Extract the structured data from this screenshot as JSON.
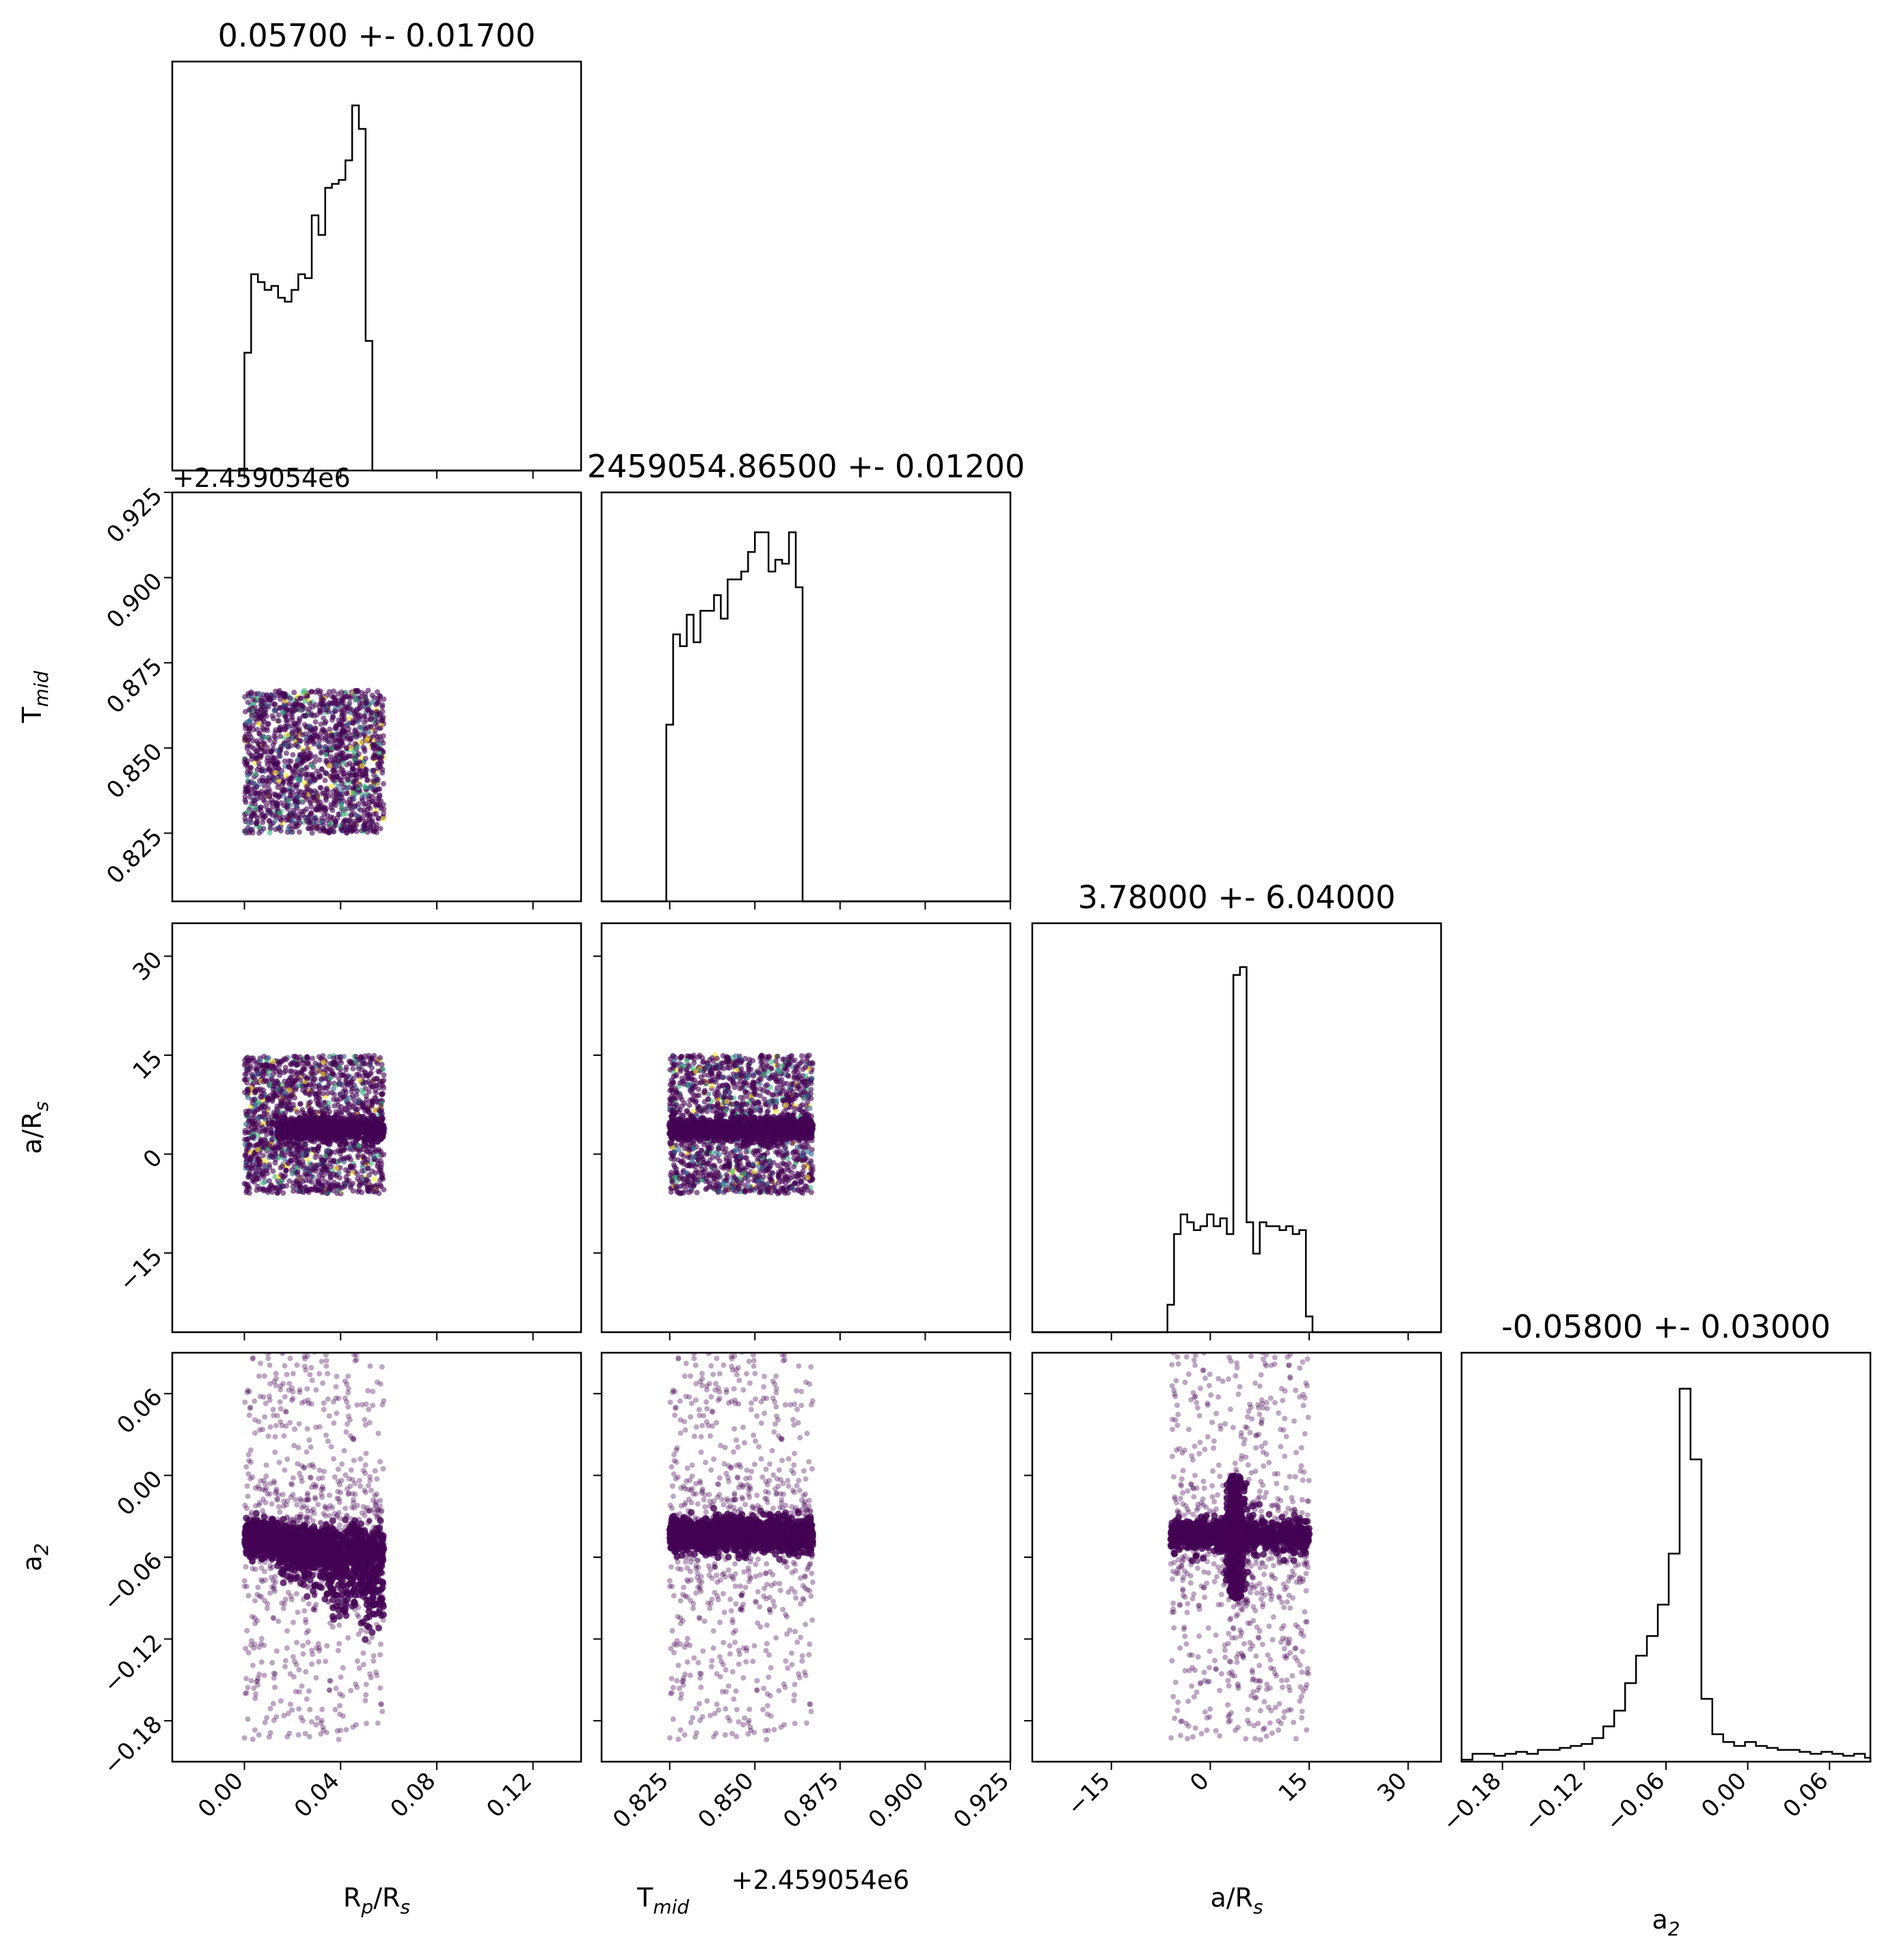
{
  "chart_data": [
    {
      "type": "histogram",
      "panel": "diag-0",
      "title": "0.05700 +- 0.01700",
      "variable": "R_p/R_s",
      "xlim": [
        -0.03,
        0.14
      ],
      "bins_x": [
        0.0,
        0.0028,
        0.0056,
        0.0084,
        0.0112,
        0.014,
        0.0168,
        0.0196,
        0.0224,
        0.0252,
        0.028,
        0.0308,
        0.0336,
        0.0364,
        0.0392,
        0.042,
        0.0448,
        0.0476,
        0.0504,
        0.0532,
        0.056,
        0.0588
      ],
      "counts": [
        0.3,
        0.5,
        0.48,
        0.46,
        0.47,
        0.44,
        0.43,
        0.46,
        0.5,
        0.49,
        0.65,
        0.6,
        0.72,
        0.73,
        0.74,
        0.79,
        0.93,
        0.87,
        0.33,
        0.0,
        0.0
      ]
    },
    {
      "type": "histogram",
      "panel": "diag-1",
      "title": "2459054.86500 +- 0.01200",
      "variable": "T_mid",
      "xlim": [
        0.805,
        0.925
      ],
      "offset_label": "+2.459054e6",
      "bins_x": [
        0.824,
        0.826,
        0.828,
        0.83,
        0.832,
        0.834,
        0.836,
        0.838,
        0.84,
        0.842,
        0.844,
        0.846,
        0.848,
        0.85,
        0.852,
        0.854,
        0.856,
        0.858,
        0.86,
        0.862,
        0.864,
        0.866
      ],
      "counts": [
        0.45,
        0.68,
        0.65,
        0.73,
        0.66,
        0.74,
        0.74,
        0.78,
        0.72,
        0.82,
        0.82,
        0.84,
        0.89,
        0.94,
        0.94,
        0.84,
        0.87,
        0.86,
        0.94,
        0.8,
        0.0
      ]
    },
    {
      "type": "histogram",
      "panel": "diag-2",
      "title": "3.78000 +- 6.04000",
      "variable": "a/R_s",
      "xlim": [
        -27,
        35
      ],
      "bins_x": [
        -6.5,
        -5.5,
        -4.5,
        -3.5,
        -2.5,
        -1.5,
        -0.5,
        0.5,
        1.5,
        2.5,
        3.5,
        4.5,
        5.5,
        6.5,
        7.5,
        8.5,
        9.5,
        10.5,
        11.5,
        12.5,
        13.5,
        14.5,
        15.5
      ],
      "counts": [
        0.07,
        0.25,
        0.3,
        0.28,
        0.26,
        0.27,
        0.3,
        0.27,
        0.29,
        0.25,
        0.91,
        0.93,
        0.28,
        0.2,
        0.28,
        0.27,
        0.27,
        0.26,
        0.27,
        0.25,
        0.26,
        0.04
      ]
    },
    {
      "type": "histogram",
      "panel": "diag-3",
      "title": "-0.05800 +- 0.03000",
      "variable": "a_2",
      "xlim": [
        -0.21,
        0.09
      ],
      "bins_x": [
        -0.21,
        -0.202,
        -0.194,
        -0.186,
        -0.178,
        -0.17,
        -0.162,
        -0.154,
        -0.146,
        -0.138,
        -0.13,
        -0.122,
        -0.114,
        -0.106,
        -0.098,
        -0.09,
        -0.082,
        -0.074,
        -0.066,
        -0.058,
        -0.05,
        -0.042,
        -0.034,
        -0.026,
        -0.018,
        -0.01,
        -0.002,
        0.006,
        0.014,
        0.022,
        0.03,
        0.038,
        0.046,
        0.054,
        0.062,
        0.07,
        0.078,
        0.086,
        0.09
      ],
      "counts": [
        0.005,
        0.02,
        0.02,
        0.015,
        0.02,
        0.025,
        0.02,
        0.03,
        0.03,
        0.035,
        0.04,
        0.045,
        0.06,
        0.09,
        0.13,
        0.2,
        0.27,
        0.32,
        0.4,
        0.53,
        0.95,
        0.77,
        0.16,
        0.07,
        0.05,
        0.04,
        0.05,
        0.04,
        0.035,
        0.03,
        0.03,
        0.025,
        0.02,
        0.025,
        0.02,
        0.015,
        0.02,
        0.01
      ]
    },
    {
      "type": "scatter",
      "panel": "1-0",
      "x_variable": "R_p/R_s",
      "y_variable": "T_mid",
      "xlim": [
        -0.03,
        0.14
      ],
      "ylim": [
        0.805,
        0.925
      ],
      "description_regions": [
        {
          "x": [
            0.0,
            0.058
          ],
          "y": [
            0.825,
            0.867
          ],
          "kind": "uniform",
          "n": 1600
        }
      ]
    },
    {
      "type": "scatter",
      "panel": "2-0",
      "x_variable": "R_p/R_s",
      "y_variable": "a/R_s",
      "xlim": [
        -0.03,
        0.14
      ],
      "ylim": [
        -27,
        35
      ],
      "description_regions": [
        {
          "x": [
            0.0,
            0.058
          ],
          "y": [
            -6,
            15
          ],
          "kind": "uniform",
          "n": 1600
        },
        {
          "x": [
            0.014,
            0.058
          ],
          "y": [
            3.78,
            3.78
          ],
          "kind": "band",
          "n": 700
        }
      ]
    },
    {
      "type": "scatter",
      "panel": "2-1",
      "x_variable": "T_mid",
      "y_variable": "a/R_s",
      "xlim": [
        0.805,
        0.925
      ],
      "ylim": [
        -27,
        35
      ],
      "description_regions": [
        {
          "x": [
            0.825,
            0.867
          ],
          "y": [
            -6,
            15
          ],
          "kind": "uniform",
          "n": 1600
        },
        {
          "x": [
            0.825,
            0.867
          ],
          "y": [
            3.78,
            3.78
          ],
          "kind": "band",
          "n": 700
        }
      ]
    },
    {
      "type": "scatter",
      "panel": "3-0",
      "x_variable": "R_p/R_s",
      "y_variable": "a_2",
      "xlim": [
        -0.03,
        0.14
      ],
      "ylim": [
        -0.21,
        0.09
      ],
      "description_regions": [
        {
          "x": [
            0.0,
            0.058
          ],
          "y": [
            -0.21,
            0.09
          ],
          "kind": "sparse",
          "n": 900
        },
        {
          "x": [
            0.0,
            0.058
          ],
          "y": [
            -0.044,
            -0.044
          ],
          "kind": "band",
          "n": 1500
        }
      ]
    },
    {
      "type": "scatter",
      "panel": "3-1",
      "x_variable": "T_mid",
      "y_variable": "a_2",
      "xlim": [
        0.805,
        0.925
      ],
      "ylim": [
        -0.21,
        0.09
      ],
      "description_regions": [
        {
          "x": [
            0.825,
            0.867
          ],
          "y": [
            -0.21,
            0.09
          ],
          "kind": "sparse",
          "n": 900
        },
        {
          "x": [
            0.825,
            0.867
          ],
          "y": [
            -0.044,
            -0.044
          ],
          "kind": "band",
          "n": 1500
        }
      ]
    },
    {
      "type": "scatter",
      "panel": "3-2",
      "x_variable": "a/R_s",
      "y_variable": "a_2",
      "xlim": [
        -27,
        35
      ],
      "ylim": [
        -0.21,
        0.09
      ],
      "description_regions": [
        {
          "x": [
            -6,
            15
          ],
          "y": [
            -0.21,
            0.09
          ],
          "kind": "sparse",
          "n": 900
        },
        {
          "x": [
            -6,
            15
          ],
          "y": [
            -0.044,
            -0.044
          ],
          "kind": "band",
          "n": 900
        },
        {
          "x": [
            3.78,
            3.78
          ],
          "y": [
            -0.09,
            0.0
          ],
          "kind": "vband",
          "n": 500
        }
      ]
    }
  ],
  "axes": {
    "x_labels": [
      "R_p/R_s",
      "T_mid",
      "a/R_s",
      "a_2"
    ],
    "y_labels": [
      "",
      "T_mid",
      "a/R_s",
      "a_2"
    ],
    "offset_labels": {
      "diag-0-top": "+2.459054e6",
      "bottom-1": "+2.459054e6"
    },
    "ticks": {
      "R_p/R_s": [
        "0.00",
        "0.04",
        "0.08",
        "0.12"
      ],
      "T_mid": [
        "0.825",
        "0.850",
        "0.875",
        "0.900",
        "0.925"
      ],
      "a/R_s": [
        "−15",
        "0",
        "15",
        "30"
      ],
      "a_2": [
        "−0.18",
        "−0.12",
        "−0.06",
        "0.00",
        "0.06"
      ]
    }
  },
  "colors": {
    "axis": "#000000",
    "histogram": "#000000",
    "scatter_main": "#440154",
    "scatter_accent_1": "#31688e",
    "scatter_accent_2": "#35b779",
    "scatter_accent_3": "#fde725"
  }
}
